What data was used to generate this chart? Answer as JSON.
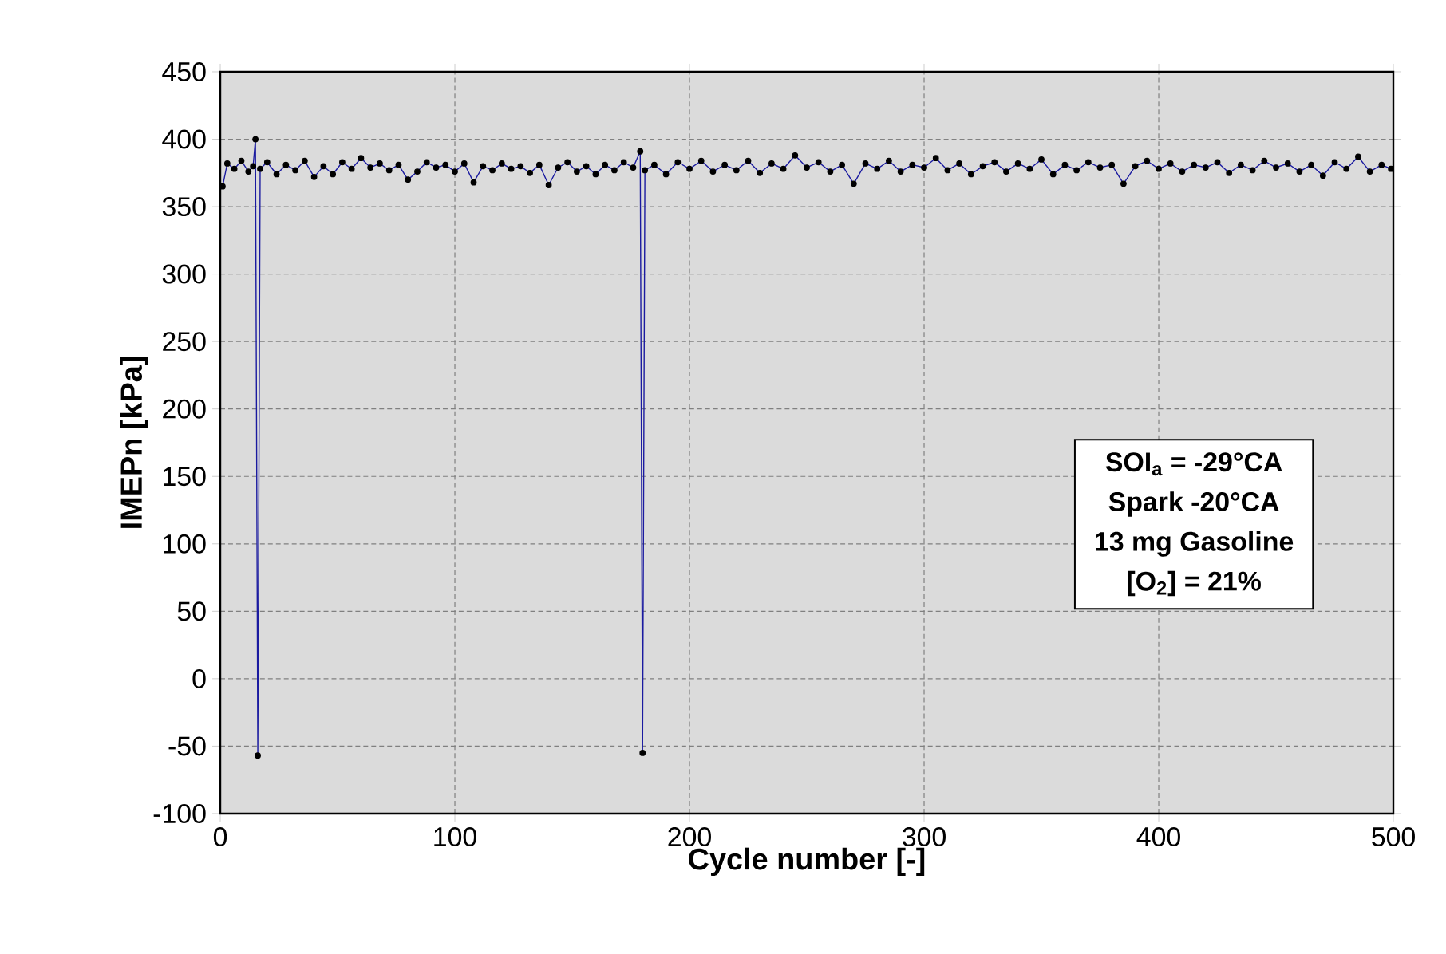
{
  "chart_data": {
    "type": "line",
    "xlabel": "Cycle number [-]",
    "ylabel": "IMEPn [kPa]",
    "xlim": [
      0,
      500
    ],
    "xticks": [
      0,
      100,
      200,
      300,
      400,
      500
    ],
    "ylim": [
      -100,
      450
    ],
    "yticks": [
      -100,
      -50,
      0,
      50,
      100,
      150,
      200,
      250,
      300,
      350,
      400,
      450
    ],
    "grid": true,
    "marker": "circle",
    "line_style": "solid",
    "annotations": [
      "SOI$_{a}$ = -29°CA",
      "Spark -20°CA",
      "13 mg Gasoline",
      "[O$_{2}$] = 21%"
    ],
    "series": [
      {
        "color": "#1a1aa0",
        "x": [
          1,
          3,
          6,
          9,
          12,
          14,
          15,
          16,
          17,
          20,
          24,
          28,
          32,
          36,
          40,
          44,
          48,
          52,
          56,
          60,
          64,
          68,
          72,
          76,
          80,
          84,
          88,
          92,
          96,
          100,
          104,
          108,
          112,
          116,
          120,
          124,
          128,
          132,
          136,
          140,
          144,
          148,
          152,
          156,
          160,
          164,
          168,
          172,
          176,
          179,
          180,
          181,
          185,
          190,
          195,
          200,
          205,
          210,
          215,
          220,
          225,
          230,
          235,
          240,
          245,
          250,
          255,
          260,
          265,
          270,
          275,
          280,
          285,
          290,
          295,
          300,
          305,
          310,
          315,
          320,
          325,
          330,
          335,
          340,
          345,
          350,
          355,
          360,
          365,
          370,
          375,
          380,
          385,
          390,
          395,
          400,
          405,
          410,
          415,
          420,
          425,
          430,
          435,
          440,
          445,
          450,
          455,
          460,
          465,
          470,
          475,
          480,
          485,
          490,
          495,
          499
        ],
        "values": [
          365,
          382,
          378,
          384,
          376,
          380,
          400,
          -57,
          378,
          383,
          374,
          381,
          377,
          384,
          372,
          380,
          374,
          383,
          378,
          386,
          379,
          382,
          377,
          381,
          370,
          376,
          383,
          379,
          381,
          376,
          382,
          368,
          380,
          377,
          382,
          378,
          380,
          375,
          381,
          366,
          379,
          383,
          376,
          380,
          374,
          381,
          377,
          383,
          379,
          391,
          -55,
          377,
          381,
          374,
          383,
          378,
          384,
          376,
          381,
          377,
          384,
          375,
          382,
          378,
          388,
          379,
          383,
          376,
          381,
          367,
          382,
          378,
          384,
          376,
          381,
          379,
          386,
          377,
          382,
          374,
          380,
          383,
          376,
          382,
          378,
          385,
          374,
          381,
          377,
          383,
          379,
          381,
          367,
          380,
          384,
          378,
          382,
          376,
          381,
          379,
          383,
          375,
          381,
          377,
          384,
          379,
          382,
          376,
          381,
          373,
          383,
          378,
          387,
          376,
          381,
          378
        ]
      }
    ]
  }
}
